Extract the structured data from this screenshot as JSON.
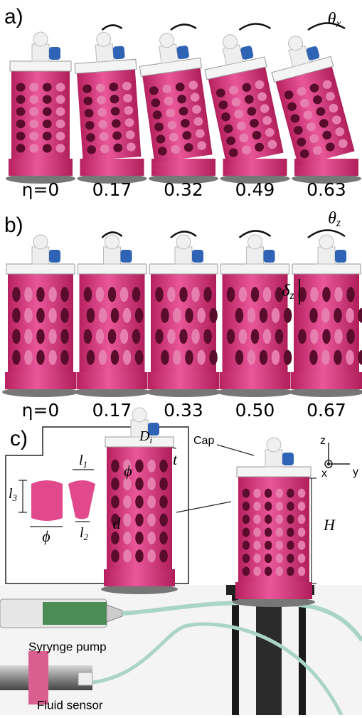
{
  "panels": [
    {
      "label": "a)",
      "rotation": {
        "symbol": "θ",
        "subscript": "x"
      },
      "frames": [
        "η=0",
        "0.17",
        "0.32",
        "0.49",
        "0.63"
      ]
    },
    {
      "label": "b)",
      "rotation": {
        "symbol": "θ",
        "subscript": "z"
      },
      "displacement": {
        "symbol": "δ",
        "subscript": "z"
      },
      "frames": [
        "η=0",
        "0.17",
        "0.33",
        "0.50",
        "0.67"
      ]
    },
    {
      "label": "c)",
      "inset": {
        "l1": {
          "symbol": "l",
          "subscript": "1"
        },
        "l2": {
          "symbol": "l",
          "subscript": "2"
        },
        "l3": {
          "symbol": "l",
          "subscript": "3"
        },
        "phi_piece": "ϕ",
        "Di": {
          "symbol": "D",
          "subscript": "i"
        },
        "t": "t",
        "phi_hole": "ϕ",
        "d": "d"
      },
      "cap": "Cap",
      "height": "H",
      "axes": {
        "z": "z",
        "x": "x",
        "y": "y"
      },
      "syringe": "Syrynge pump",
      "sensor": "Fluid sensor"
    }
  ]
}
